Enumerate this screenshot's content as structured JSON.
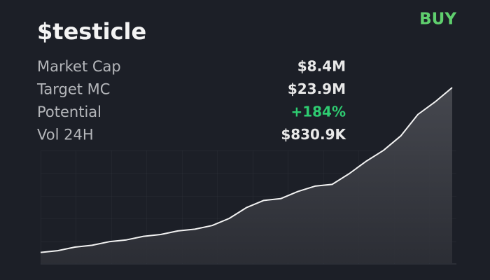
{
  "title": "$testicle",
  "action": "BUY",
  "stats": [
    {
      "label": "Market Cap",
      "value": "$8.4M"
    },
    {
      "label": "Target MC",
      "value": "$23.9M"
    },
    {
      "label": "Potential",
      "value": "+184%"
    },
    {
      "label": "Vol 24H",
      "value": "$830.9K"
    }
  ],
  "chart_data": {
    "type": "line",
    "color": "#f2f2f2",
    "values": [
      6,
      7,
      9,
      10,
      12,
      13,
      15,
      16,
      18,
      19,
      21,
      25,
      31,
      35,
      36,
      40,
      43,
      44,
      50,
      57,
      63,
      71,
      83,
      90,
      98
    ],
    "ylim": [
      0,
      100
    ]
  }
}
